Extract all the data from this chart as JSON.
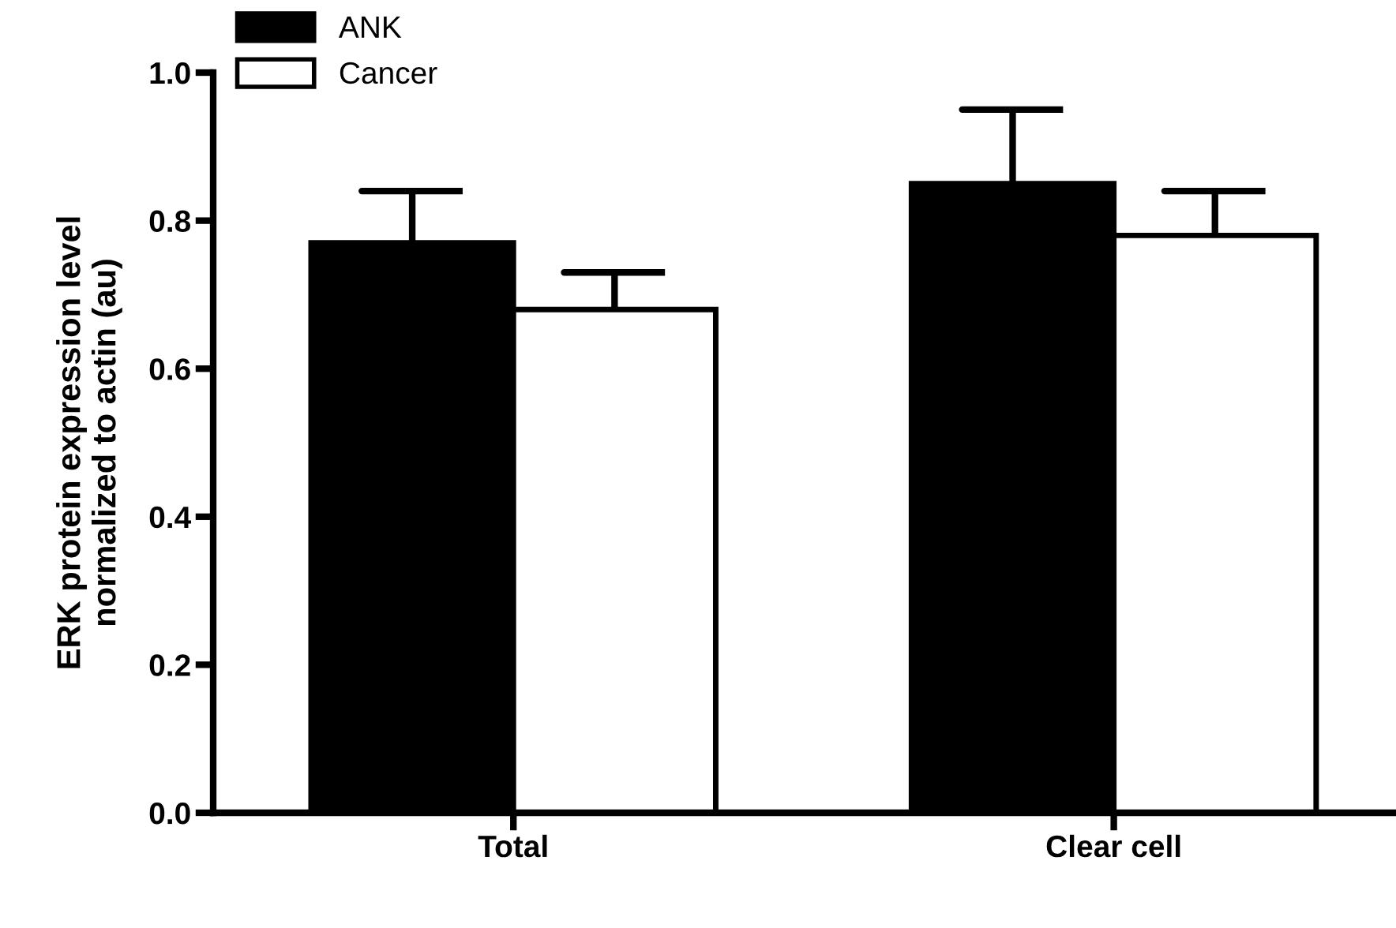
{
  "chart_data": {
    "type": "bar",
    "ylabel": "ERK protein expression level\nnormalized to actin (au)",
    "categories": [
      "Total",
      "Clear cell"
    ],
    "series": [
      {
        "name": "ANK",
        "color": "#000000",
        "values": [
          0.77,
          0.85
        ],
        "errors": [
          [
            0.77,
            0.84
          ],
          [
            0.85,
            0.95
          ]
        ]
      },
      {
        "name": "Cancer",
        "color": "#ffffff",
        "values": [
          0.68,
          0.78
        ],
        "errors": [
          [
            0.68,
            0.73
          ],
          [
            0.78,
            0.84
          ]
        ]
      }
    ],
    "ylim": [
      0,
      1.0
    ],
    "yticks": [
      {
        "value": 0,
        "label": "0.0"
      },
      {
        "value": 0.2,
        "label": "0.2"
      },
      {
        "value": 0.4,
        "label": "0.4"
      },
      {
        "value": 0.6,
        "label": "0.6"
      },
      {
        "value": 0.8,
        "label": "0.8"
      },
      {
        "value": 1.0,
        "label": "1.0"
      }
    ],
    "grid": false,
    "legend": "top left"
  }
}
